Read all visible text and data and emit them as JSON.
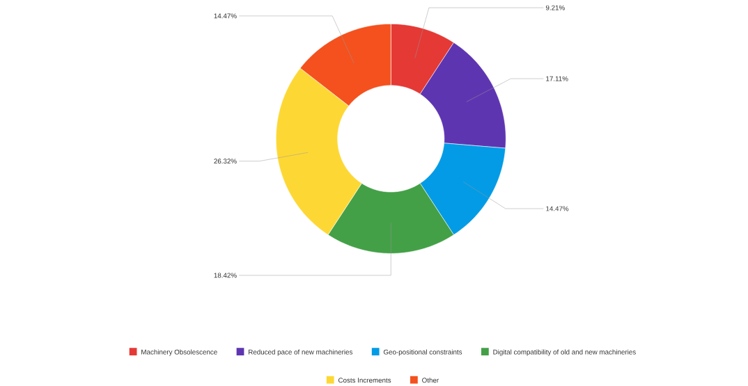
{
  "chart_data": {
    "type": "donut",
    "categories": [
      "Machinery Obsolescence",
      "Reduced pace of new machineries",
      "Geo-positional constraints",
      "Digital compatibility of old and new machineries",
      "Costs Increments",
      "Other"
    ],
    "values": [
      9.21,
      17.11,
      14.47,
      18.42,
      26.32,
      14.47
    ],
    "value_labels": [
      "9.21%",
      "17.11%",
      "14.47%",
      "18.42%",
      "26.32%",
      "14.47%"
    ],
    "colors": [
      "#e53935",
      "#5e35b1",
      "#039be5",
      "#43a047",
      "#fdd835",
      "#f4511e"
    ],
    "legend": "bottom"
  }
}
